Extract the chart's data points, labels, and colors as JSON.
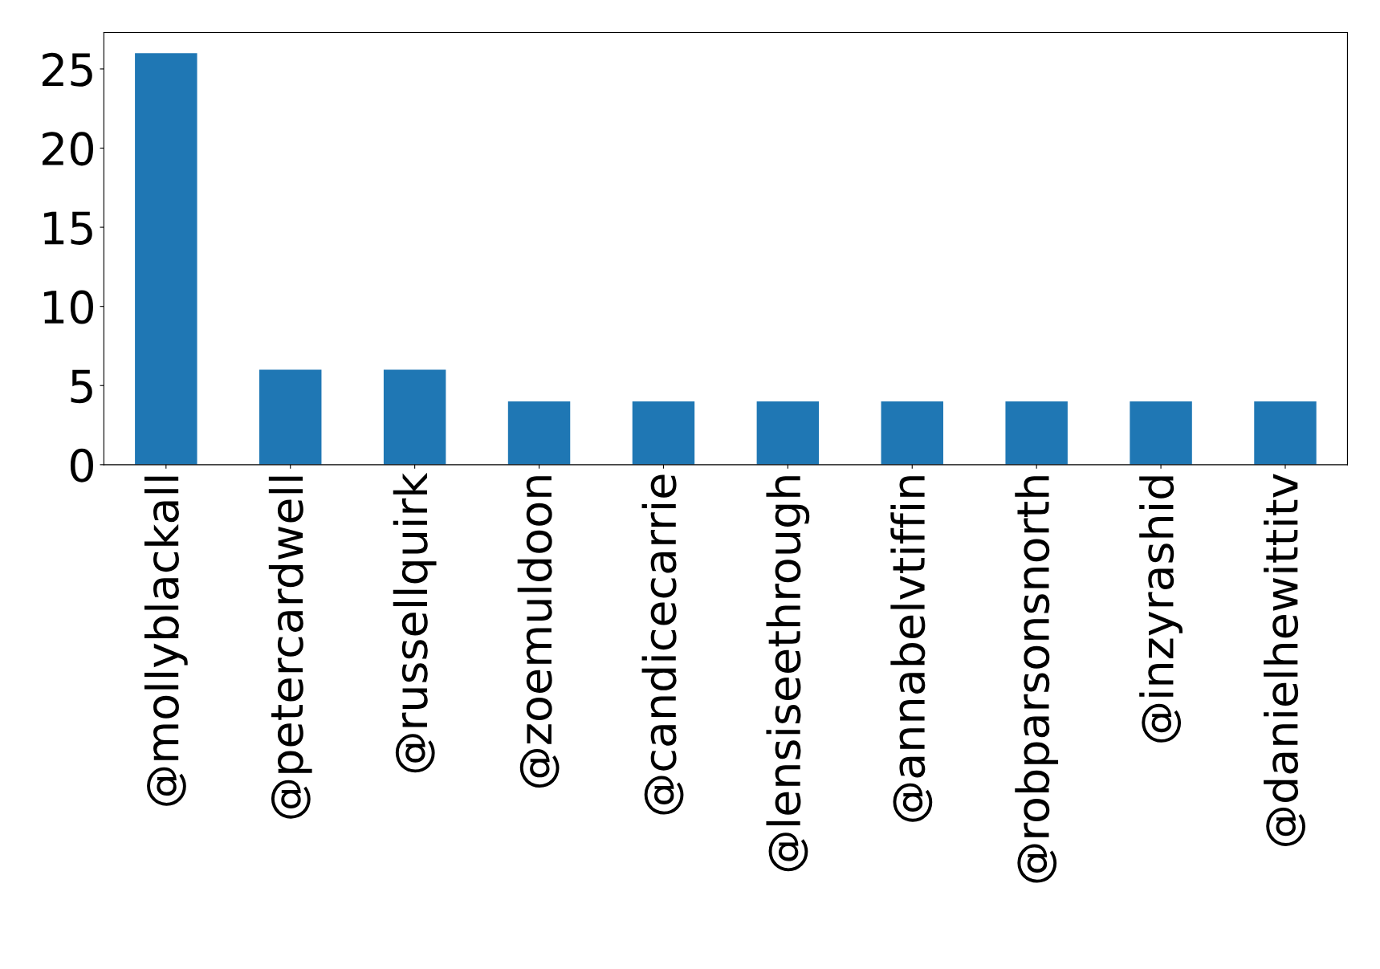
{
  "chart_data": {
    "type": "bar",
    "categories": [
      "@mollyblackall",
      "@petercardwell",
      "@russellquirk",
      "@zoemuldoon",
      "@candicecarrie",
      "@lensiseethrough",
      "@annabelvtiffin",
      "@robparsonsnorth",
      "@inzyrashid",
      "@danielhewittitv"
    ],
    "values": [
      26,
      6,
      6,
      4,
      4,
      4,
      4,
      4,
      4,
      4
    ],
    "color": "#1f77b4",
    "ylim": [
      0,
      27.3
    ],
    "yticks": [
      0,
      5,
      10,
      15,
      20,
      25
    ],
    "grid": false,
    "legend": false
  }
}
